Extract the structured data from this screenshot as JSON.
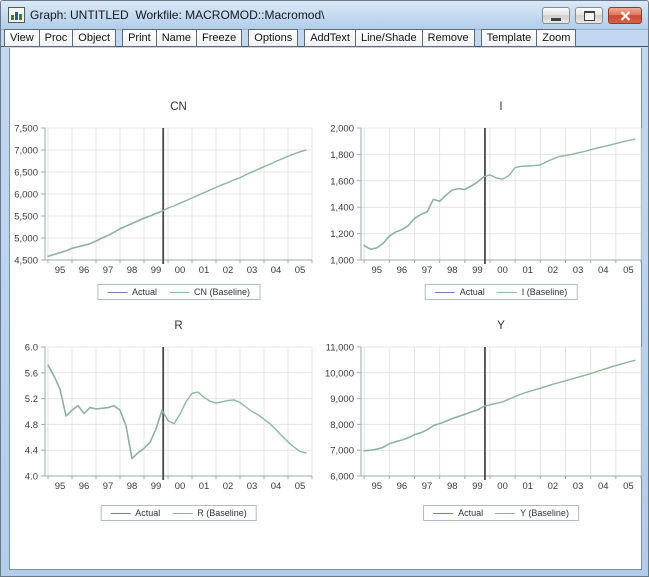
{
  "window": {
    "title": "Graph: UNTITLED  Workfile: MACROMOD::Macromod\\",
    "icon": "bar-chart-icon",
    "controls": [
      "minimize",
      "maximize",
      "close"
    ]
  },
  "toolbar": {
    "groups": [
      [
        "View",
        "Proc",
        "Object"
      ],
      [
        "Print",
        "Name",
        "Freeze"
      ],
      [
        "Options"
      ],
      [
        "AddText",
        "Line/Shade",
        "Remove"
      ],
      [
        "Template",
        "Zoom"
      ]
    ]
  },
  "colors": {
    "frame_blue": "#b9d3ec",
    "client_bg": "#ffffff",
    "grid": "#e4e4e4",
    "axis": "#a2a8ae",
    "tick_label": "#3a3a3a",
    "divider_line": "#4a4a4a",
    "actual_series": "#6e82ab",
    "baseline_series": "#8fb4a0",
    "close_button_red": "#c94b33"
  },
  "chart_data": [
    {
      "type": "line",
      "title": "CN",
      "x_range": [
        1994.875,
        2006.0
      ],
      "ylim": [
        4500,
        7500
      ],
      "yticks": {
        "values": [
          4500,
          5000,
          5500,
          6000,
          6500,
          7000,
          7500
        ],
        "labels": [
          "4,500",
          "5,000",
          "5,500",
          "6,000",
          "6,500",
          "7,000",
          "7,500"
        ]
      },
      "xticks": {
        "labels": [
          "95",
          "96",
          "97",
          "98",
          "99",
          "00",
          "01",
          "02",
          "03",
          "04",
          "05"
        ],
        "positions": [
          1995.5,
          1996.5,
          1997.5,
          1998.5,
          1999.5,
          2000.5,
          2001.5,
          2002.5,
          2003.5,
          2004.5,
          2005.5
        ]
      },
      "divider_x": 1999.8,
      "legend_position": "bottom",
      "series": [
        {
          "name": "Actual",
          "color": "#6e82ab",
          "x_start": 1995.0,
          "x_step": 0.25,
          "values": [
            4585,
            4625,
            4665,
            4710,
            4765,
            4800,
            4835,
            4870,
            4930,
            5000,
            5060,
            5130,
            5210,
            5270,
            5330,
            5390,
            5450,
            5500,
            5560,
            5610
          ]
        },
        {
          "name": "CN (Baseline)",
          "color": "#8fb4a0",
          "x_start": 1995.0,
          "x_step": 0.25,
          "values": [
            4585,
            4625,
            4665,
            4710,
            4765,
            4800,
            4835,
            4870,
            4930,
            5000,
            5060,
            5130,
            5210,
            5270,
            5330,
            5390,
            5450,
            5500,
            5560,
            5610,
            5680,
            5730,
            5790,
            5850,
            5910,
            5970,
            6030,
            6090,
            6150,
            6210,
            6260,
            6320,
            6370,
            6440,
            6500,
            6560,
            6620,
            6680,
            6740,
            6800,
            6860,
            6910,
            6960,
            7000
          ]
        }
      ]
    },
    {
      "type": "line",
      "title": "I",
      "x_range": [
        1994.875,
        2006.0
      ],
      "ylim": [
        1000,
        2000
      ],
      "yticks": {
        "values": [
          1000,
          1200,
          1400,
          1600,
          1800,
          2000
        ],
        "labels": [
          "1,000",
          "1,200",
          "1,400",
          "1,600",
          "1,800",
          "2,000"
        ]
      },
      "xticks": {
        "labels": [
          "95",
          "96",
          "97",
          "98",
          "99",
          "00",
          "01",
          "02",
          "03",
          "04",
          "05"
        ],
        "positions": [
          1995.5,
          1996.5,
          1997.5,
          1998.5,
          1999.5,
          2000.5,
          2001.5,
          2002.5,
          2003.5,
          2004.5,
          2005.5
        ]
      },
      "divider_x": 1999.8,
      "legend_position": "bottom",
      "series": [
        {
          "name": "Actual",
          "color": "#6e82ab",
          "x_start": 1995.0,
          "x_step": 0.25,
          "values": [
            1110,
            1082,
            1092,
            1125,
            1180,
            1212,
            1230,
            1260,
            1315,
            1345,
            1365,
            1460,
            1445,
            1490,
            1530,
            1540,
            1535,
            1560,
            1590,
            1630
          ]
        },
        {
          "name": "I (Baseline)",
          "color": "#8fb4a0",
          "x_start": 1995.0,
          "x_step": 0.25,
          "values": [
            1110,
            1082,
            1092,
            1125,
            1180,
            1212,
            1230,
            1260,
            1315,
            1345,
            1365,
            1460,
            1445,
            1490,
            1530,
            1540,
            1535,
            1560,
            1590,
            1630,
            1645,
            1622,
            1612,
            1640,
            1700,
            1710,
            1712,
            1715,
            1720,
            1745,
            1765,
            1785,
            1792,
            1800,
            1812,
            1822,
            1835,
            1848,
            1858,
            1870,
            1882,
            1893,
            1905,
            1915
          ]
        }
      ]
    },
    {
      "type": "line",
      "title": "R",
      "x_range": [
        1994.875,
        2006.0
      ],
      "ylim": [
        4.0,
        6.0
      ],
      "yticks": {
        "values": [
          4.0,
          4.4,
          4.8,
          5.2,
          5.6,
          6.0
        ],
        "labels": [
          "4.0",
          "4.4",
          "4.8",
          "5.2",
          "5.6",
          "6.0"
        ]
      },
      "xticks": {
        "labels": [
          "95",
          "96",
          "97",
          "98",
          "99",
          "00",
          "01",
          "02",
          "03",
          "04",
          "05"
        ],
        "positions": [
          1995.5,
          1996.5,
          1997.5,
          1998.5,
          1999.5,
          2000.5,
          2001.5,
          2002.5,
          2003.5,
          2004.5,
          2005.5
        ]
      },
      "divider_x": 1999.8,
      "legend_position": "bottom",
      "series": [
        {
          "name": "Actual",
          "color": "#6e82ab",
          "x_start": 1995.0,
          "x_step": 0.25,
          "values": [
            5.72,
            5.55,
            5.35,
            4.93,
            5.02,
            5.09,
            4.97,
            5.06,
            5.04,
            5.05,
            5.06,
            5.09,
            5.02,
            4.78,
            4.27,
            4.36,
            4.43,
            4.52,
            4.73,
            5.02
          ]
        },
        {
          "name": "R (Baseline)",
          "color": "#8fb4a0",
          "x_start": 1995.0,
          "x_step": 0.25,
          "values": [
            5.72,
            5.55,
            5.35,
            4.93,
            5.02,
            5.09,
            4.97,
            5.06,
            5.04,
            5.05,
            5.06,
            5.09,
            5.02,
            4.78,
            4.27,
            4.36,
            4.43,
            4.52,
            4.73,
            5.02,
            4.86,
            4.81,
            4.96,
            5.15,
            5.28,
            5.3,
            5.22,
            5.16,
            5.13,
            5.15,
            5.17,
            5.18,
            5.14,
            5.07,
            5.0,
            4.95,
            4.88,
            4.81,
            4.72,
            4.62,
            4.53,
            4.45,
            4.38,
            4.36
          ]
        }
      ]
    },
    {
      "type": "line",
      "title": "Y",
      "x_range": [
        1994.875,
        2006.0
      ],
      "ylim": [
        6000,
        11000
      ],
      "yticks": {
        "values": [
          6000,
          7000,
          8000,
          9000,
          10000,
          11000
        ],
        "labels": [
          "6,000",
          "7,000",
          "8,000",
          "9,000",
          "10,000",
          "11,000"
        ]
      },
      "xticks": {
        "labels": [
          "95",
          "96",
          "97",
          "98",
          "99",
          "00",
          "01",
          "02",
          "03",
          "04",
          "05"
        ],
        "positions": [
          1995.5,
          1996.5,
          1997.5,
          1998.5,
          1999.5,
          2000.5,
          2001.5,
          2002.5,
          2003.5,
          2004.5,
          2005.5
        ]
      },
      "divider_x": 1999.8,
      "legend_position": "bottom",
      "series": [
        {
          "name": "Actual",
          "color": "#6e82ab",
          "x_start": 1995.0,
          "x_step": 0.25,
          "values": [
            6980,
            6995,
            7040,
            7110,
            7250,
            7330,
            7395,
            7480,
            7600,
            7680,
            7790,
            7950,
            8030,
            8120,
            8230,
            8310,
            8390,
            8480,
            8560,
            8700
          ]
        },
        {
          "name": "Y (Baseline)",
          "color": "#8fb4a0",
          "x_start": 1995.0,
          "x_step": 0.25,
          "values": [
            6980,
            6995,
            7040,
            7110,
            7250,
            7330,
            7395,
            7480,
            7600,
            7680,
            7790,
            7950,
            8030,
            8120,
            8230,
            8310,
            8390,
            8480,
            8560,
            8700,
            8760,
            8815,
            8875,
            8980,
            9080,
            9180,
            9260,
            9330,
            9400,
            9480,
            9560,
            9620,
            9690,
            9760,
            9830,
            9900,
            9970,
            10050,
            10130,
            10200,
            10280,
            10350,
            10420,
            10480
          ]
        }
      ]
    }
  ]
}
